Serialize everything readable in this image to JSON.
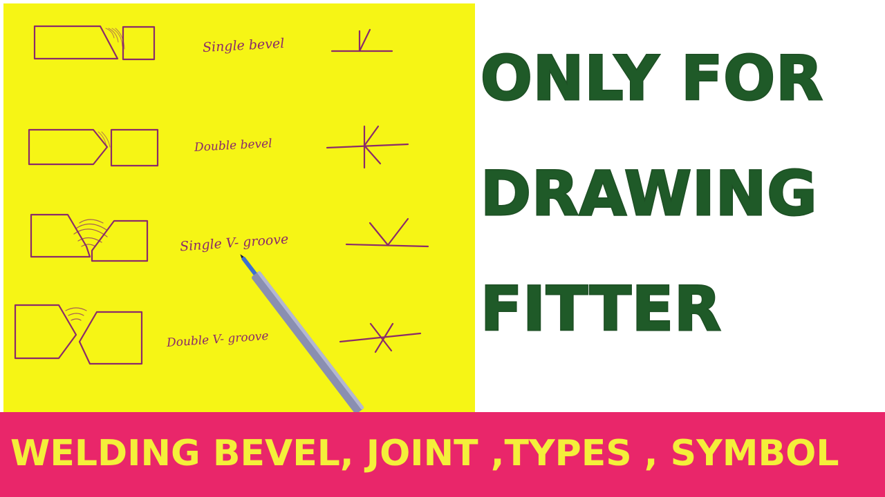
{
  "paper": {
    "labels": {
      "single_bevel": "Single bevel",
      "double_bevel": "Double bevel",
      "single_v": "Single V- groove",
      "double_v": "Double V- groove"
    }
  },
  "headline": {
    "line1": "ONLY FOR",
    "line2": "DRAWING",
    "line3": "FITTER"
  },
  "banner": {
    "text": "WELDING BEVEL, JOINT ,TYPES , SYMBOL"
  },
  "colors": {
    "paper": "#f6f515",
    "ink": "#8a2a6a",
    "headline": "#1f5a28",
    "banner": "#e9266a",
    "banner_text": "#f4ef3a"
  }
}
